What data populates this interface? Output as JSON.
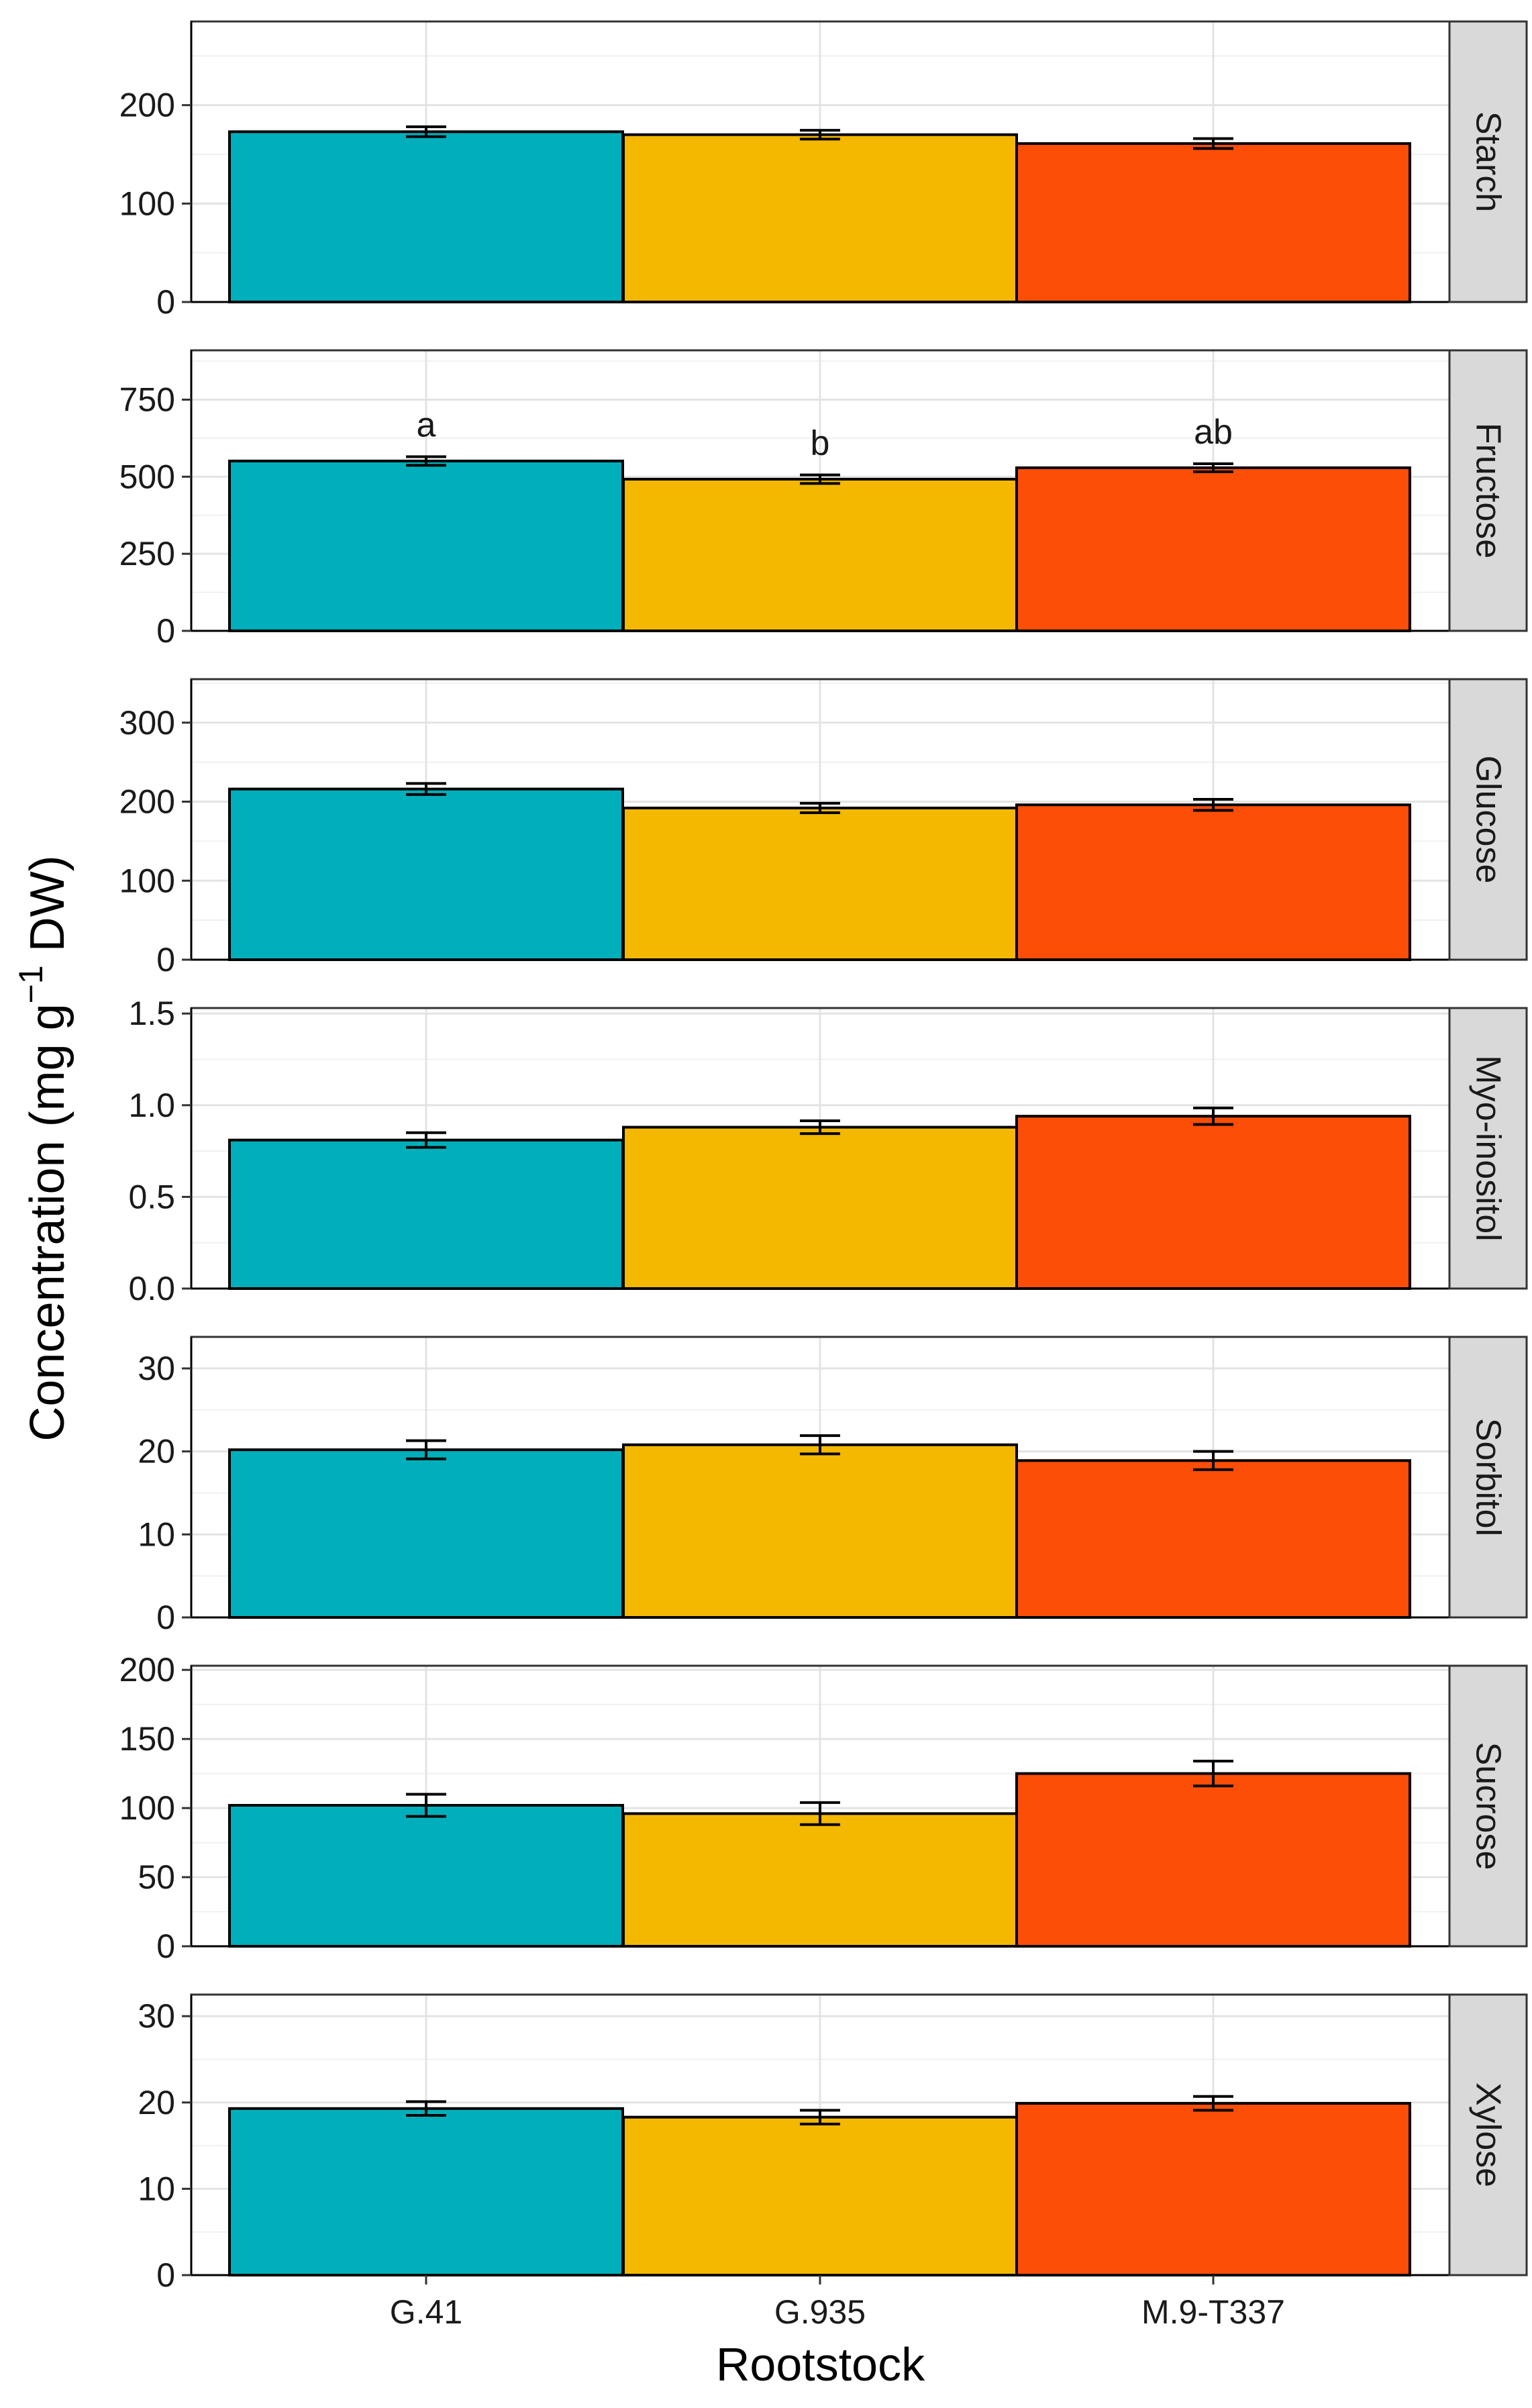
{
  "chart_data": {
    "type": "bar",
    "facet_layout": "stacked panels, strip labels on right",
    "xlabel": "Rootstock",
    "ylabel_main": "Concentration (mg  g",
    "ylabel_sup": "−1",
    "ylabel_tail": " DW)",
    "categories": [
      "G.41",
      "G.935",
      "M.9-T337"
    ],
    "colors": [
      "#00AFBB",
      "#F4B800",
      "#FC4E07"
    ],
    "grid": true,
    "panels": [
      {
        "name": "Starch",
        "ylim": [
          0,
          285
        ],
        "ticks": [
          0,
          100,
          200
        ],
        "values": [
          173,
          170,
          161
        ],
        "errors": [
          5,
          4.5,
          5
        ],
        "letters": [
          "",
          "",
          ""
        ]
      },
      {
        "name": "Fructose",
        "ylim": [
          0,
          910
        ],
        "ticks": [
          0,
          250,
          500,
          750
        ],
        "values": [
          551,
          492,
          529
        ],
        "errors": [
          14,
          14,
          13
        ],
        "letters": [
          "a",
          "b",
          "ab"
        ]
      },
      {
        "name": "Glucose",
        "ylim": [
          0,
          355
        ],
        "ticks": [
          0,
          100,
          200,
          300
        ],
        "values": [
          216,
          192,
          196
        ],
        "errors": [
          7,
          6,
          7
        ],
        "letters": [
          "",
          "",
          ""
        ]
      },
      {
        "name": "Myo-inositol",
        "ylim": [
          0,
          1.53
        ],
        "ticks": [
          0.0,
          0.5,
          1.0,
          1.5
        ],
        "tick_labels": [
          "0.0",
          "0.5",
          "1.0",
          "1.5"
        ],
        "values": [
          0.81,
          0.88,
          0.94
        ],
        "errors": [
          0.04,
          0.035,
          0.045
        ],
        "letters": [
          "",
          "",
          ""
        ]
      },
      {
        "name": "Sorbitol",
        "ylim": [
          0,
          33.8
        ],
        "ticks": [
          0,
          10,
          20,
          30
        ],
        "values": [
          20.2,
          20.8,
          18.9
        ],
        "errors": [
          1.1,
          1.1,
          1.1
        ],
        "letters": [
          "",
          "",
          ""
        ]
      },
      {
        "name": "Sucrose",
        "ylim": [
          0,
          203
        ],
        "ticks": [
          0,
          50,
          100,
          150,
          200
        ],
        "values": [
          102,
          96,
          125
        ],
        "errors": [
          8,
          8,
          9
        ],
        "letters": [
          "",
          "",
          ""
        ]
      },
      {
        "name": "Xylose",
        "ylim": [
          0,
          32.5
        ],
        "ticks": [
          0,
          10,
          20,
          30
        ],
        "values": [
          19.3,
          18.3,
          19.9
        ],
        "errors": [
          0.8,
          0.8,
          0.8
        ],
        "letters": [
          "",
          "",
          ""
        ]
      }
    ]
  }
}
